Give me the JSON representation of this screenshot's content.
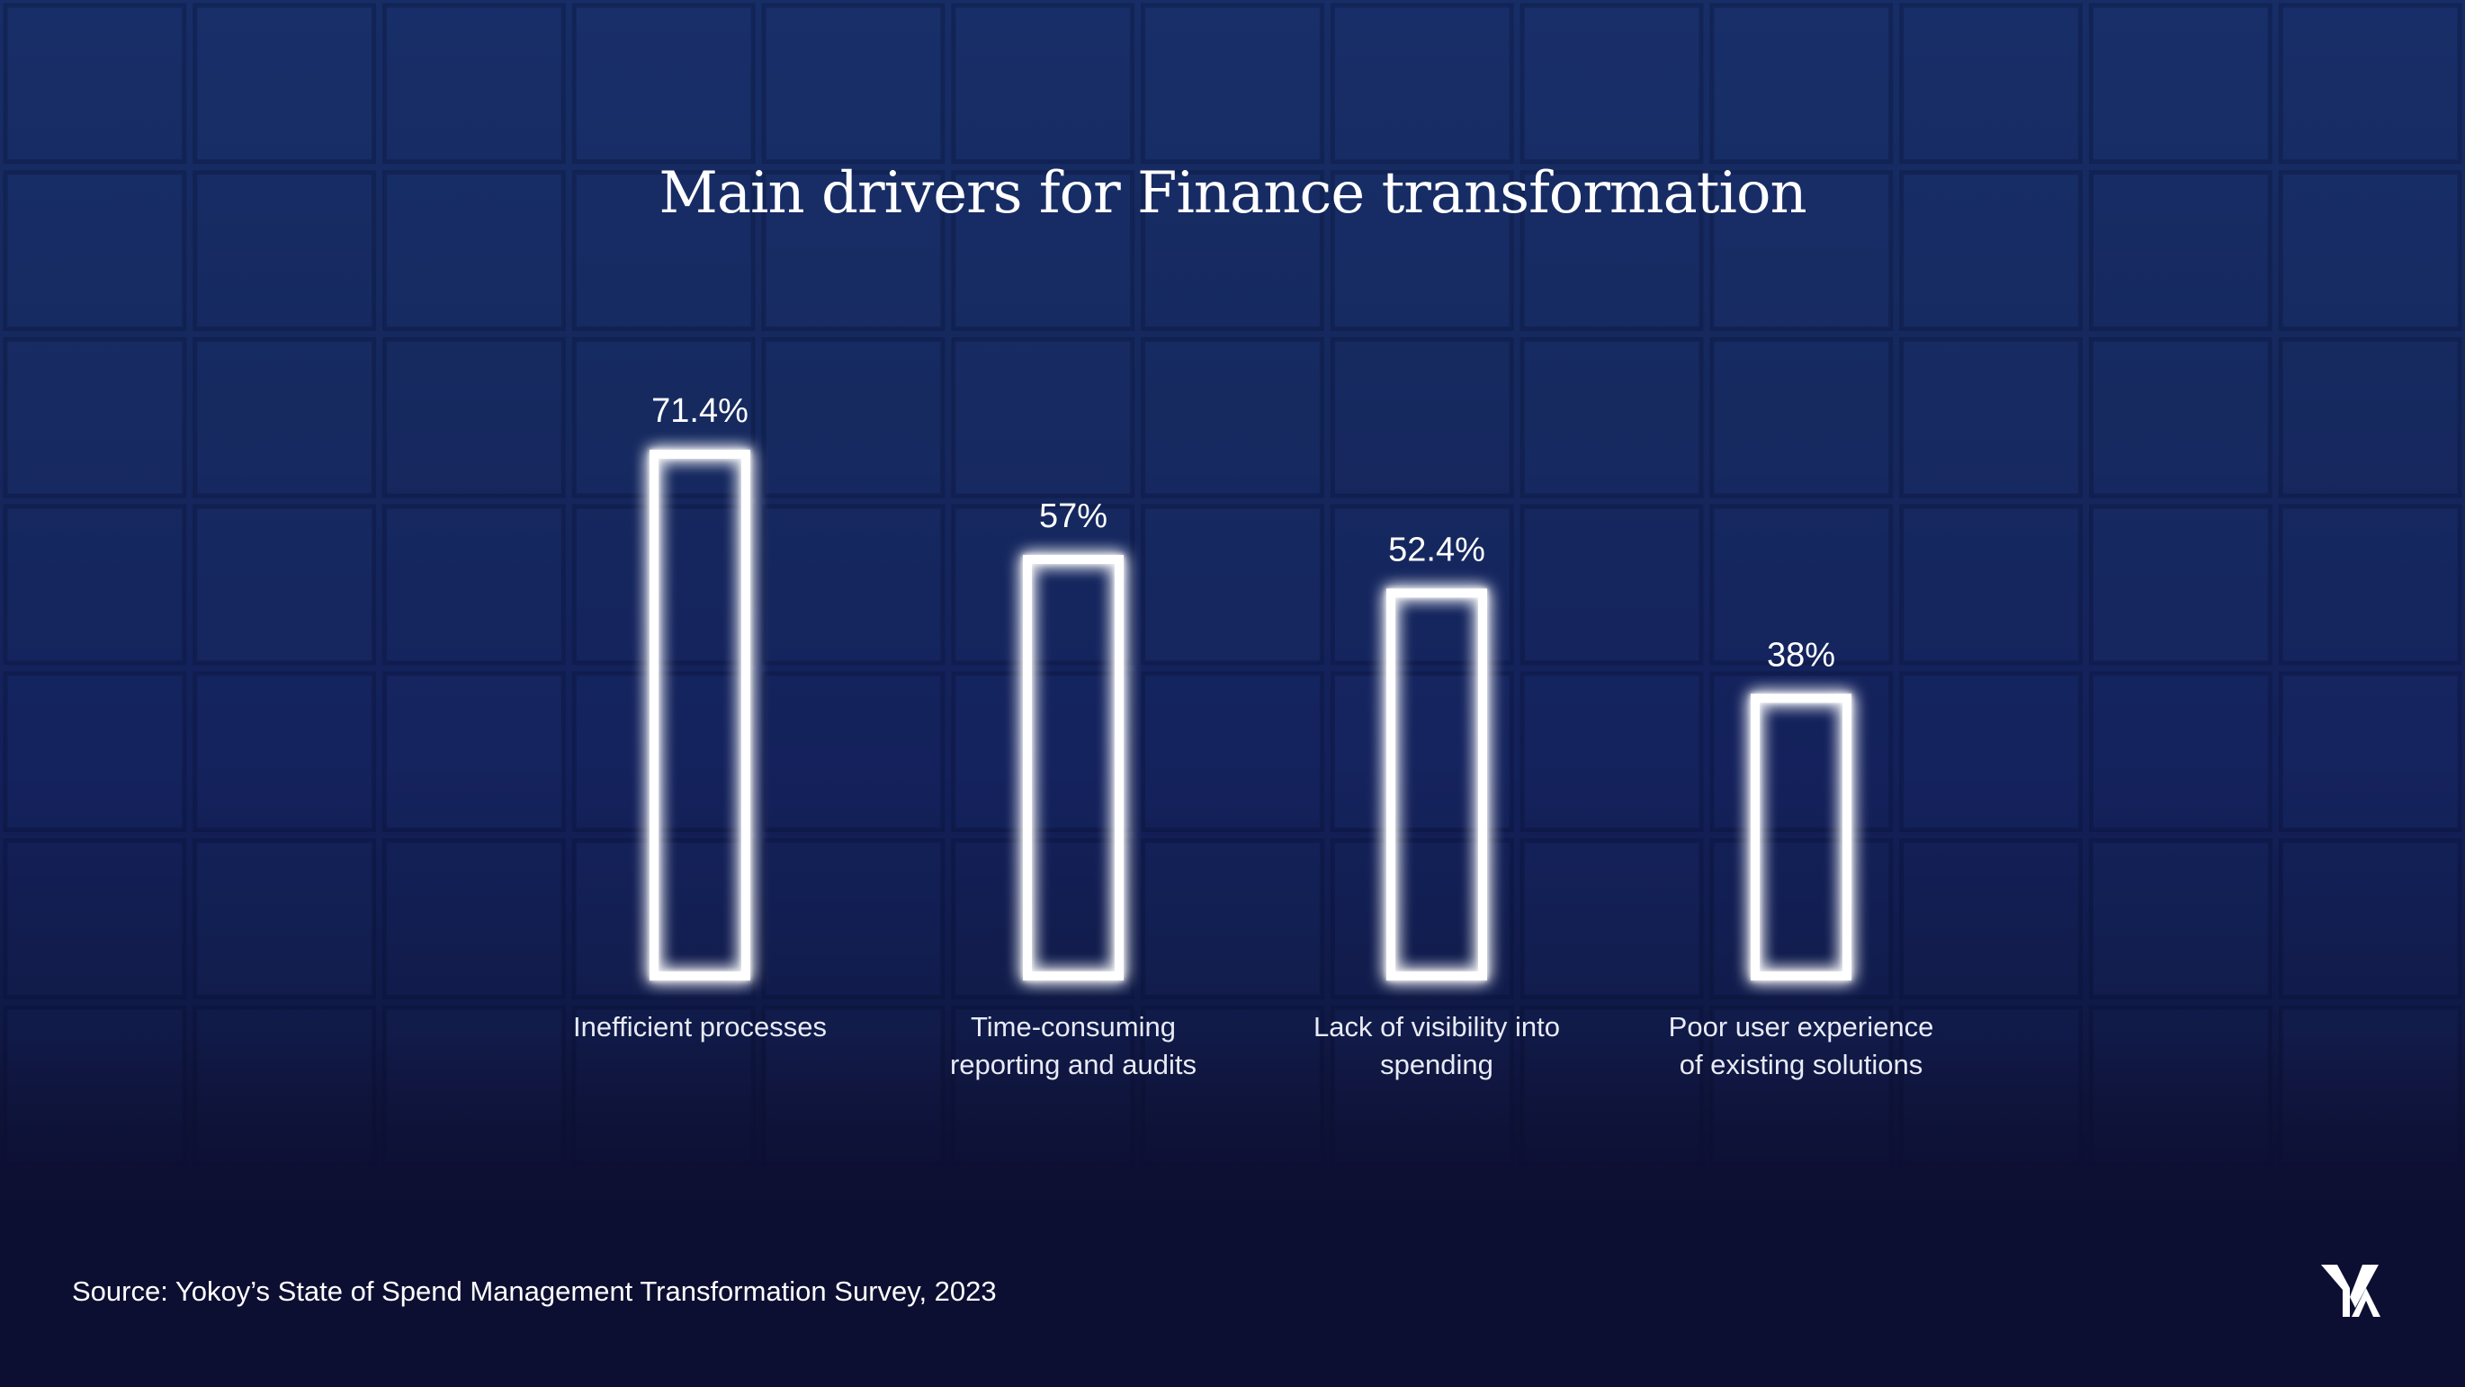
{
  "chart_data": {
    "type": "bar",
    "title": "Main drivers for Finance transformation",
    "categories": [
      [
        "Inefficient processes"
      ],
      [
        "Time-consuming",
        "reporting and audits"
      ],
      [
        "Lack of visibility into",
        "spending"
      ],
      [
        "Poor user experience",
        "of existing solutions"
      ]
    ],
    "values": [
      71.4,
      57,
      52.4,
      38
    ],
    "value_labels": [
      "71.4%",
      "57%",
      "52.4%",
      "38%"
    ],
    "xlabel": "",
    "ylabel": "",
    "ylim": [
      0,
      71.4
    ],
    "grid": false,
    "legend": "none",
    "bar_style": "glowing outline"
  },
  "footer": {
    "source": "Source: Yokoy’s State of Spend Management Transformation Survey, 2023"
  },
  "brand": {
    "logo_icon": "yokoy-logo-icon"
  },
  "colors": {
    "background": "#13205a",
    "background_bottom": "#0d0f32",
    "bar_outline": "#ffffff",
    "bar_glow": "#cfd8ff",
    "text": "#ffffff"
  }
}
